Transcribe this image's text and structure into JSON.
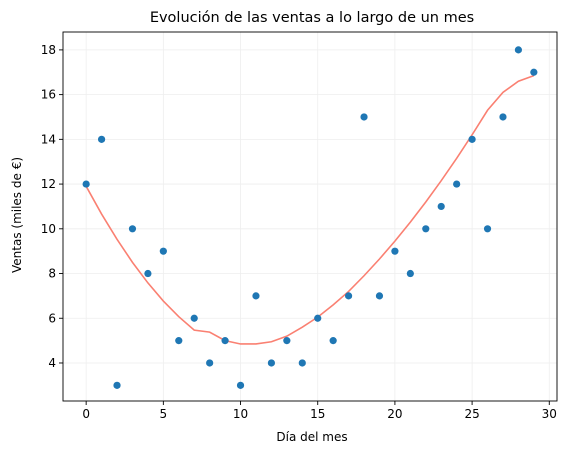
{
  "chart_data": {
    "type": "scatter",
    "title": "Evolución de las ventas a lo largo de un mes",
    "xlabel": "Día del mes",
    "ylabel": "Ventas (miles de €)",
    "xlim": [
      -1.5,
      30.5
    ],
    "ylim": [
      2.3,
      18.8
    ],
    "xticks": [
      0,
      5,
      10,
      15,
      20,
      25,
      30
    ],
    "yticks": [
      4,
      6,
      8,
      10,
      12,
      14,
      16,
      18
    ],
    "grid": true,
    "legend": "none",
    "colors": {
      "points": "#1f77b4",
      "trend": "#fa8072",
      "grid": "#eeeeee"
    },
    "x": [
      0,
      1,
      2,
      3,
      4,
      5,
      6,
      7,
      8,
      9,
      10,
      11,
      12,
      13,
      14,
      15,
      16,
      17,
      18,
      19,
      20,
      21,
      22,
      23,
      24,
      25,
      26,
      27,
      28,
      29
    ],
    "y": [
      12,
      14,
      3,
      10,
      8,
      9,
      5,
      6,
      4,
      5,
      3,
      7,
      4,
      5,
      4,
      6,
      5,
      7,
      15,
      7,
      9,
      8,
      10,
      11,
      12,
      14,
      10,
      15,
      18,
      17
    ],
    "trend": {
      "x": [
        0,
        1,
        2,
        3,
        4,
        5,
        6,
        7,
        8,
        9,
        10,
        11,
        12,
        13,
        14,
        15,
        16,
        17,
        18,
        19,
        20,
        21,
        22,
        23,
        24,
        25,
        26,
        27,
        28,
        29
      ],
      "y": [
        11.9,
        10.66,
        9.53,
        8.5,
        7.58,
        6.77,
        6.07,
        5.47,
        5.38,
        5.0,
        4.85,
        4.85,
        4.95,
        5.2,
        5.6,
        6.05,
        6.6,
        7.2,
        7.9,
        8.65,
        9.45,
        10.3,
        11.2,
        12.15,
        13.15,
        14.2,
        15.3,
        16.1,
        16.6,
        16.85
      ]
    }
  }
}
